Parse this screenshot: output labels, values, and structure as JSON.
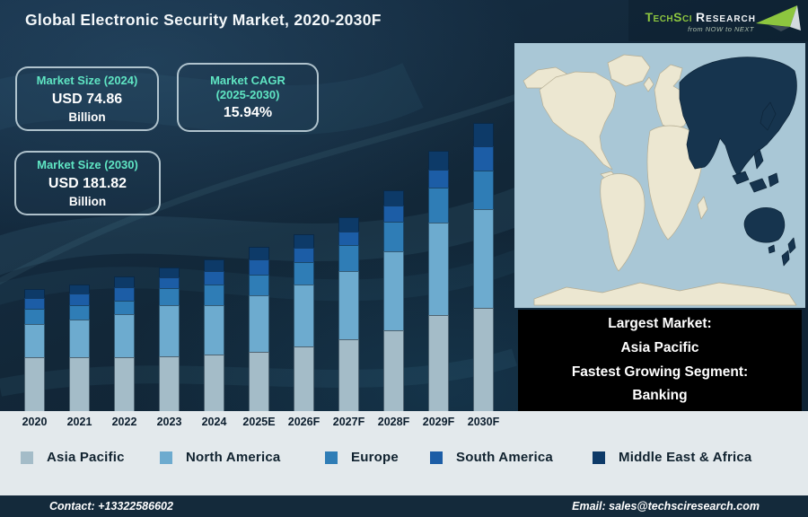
{
  "header": {
    "title": "Global Electronic Security Market, 2020-2030F",
    "logo": {
      "part1": "TechSci",
      "part2": "Research",
      "tagline": "from NOW to NEXT"
    }
  },
  "info_boxes": [
    {
      "label": "Market Size (2024)",
      "value": "USD 74.86",
      "unit": "Billion"
    },
    {
      "label": "Market CAGR",
      "label2": "(2025-2030)",
      "value": "15.94%"
    },
    {
      "label": "Market Size (2030)",
      "value": "USD 181.82",
      "unit": "Billion"
    }
  ],
  "chart_data": {
    "type": "bar",
    "stacked": true,
    "title": "Global Electronic Security Market, 2020-2030F",
    "categories": [
      "2020",
      "2021",
      "2022",
      "2023",
      "2024",
      "2025E",
      "2026F",
      "2027F",
      "2028F",
      "2029F",
      "2030F"
    ],
    "series": [
      {
        "name": "Asia Pacific",
        "color": "#a4bcc8",
        "values": [
          60,
          60,
          60,
          61,
          63,
          66,
          72,
          80,
          90,
          107,
          115
        ]
      },
      {
        "name": "North America",
        "color": "#6dabcf",
        "values": [
          37,
          42,
          48,
          57,
          55,
          63,
          69,
          76,
          88,
          103,
          110
        ]
      },
      {
        "name": "Europe",
        "color": "#2f7db6",
        "values": [
          17,
          16,
          15,
          19,
          23,
          23,
          25,
          29,
          33,
          39,
          43
        ]
      },
      {
        "name": "South America",
        "color": "#1c5da6",
        "values": [
          12,
          13,
          15,
          12,
          15,
          17,
          16,
          15,
          18,
          20,
          27
        ]
      },
      {
        "name": "Middle East & Africa",
        "color": "#0d3a68",
        "values": [
          10,
          10,
          12,
          11,
          13,
          14,
          15,
          16,
          17,
          21,
          26
        ]
      }
    ],
    "value_units": "relative bar height in pixels; the chart shows no value axis",
    "anchors": {
      "market_size_2024": "USD 74.86 Billion",
      "market_size_2030": "USD 181.82 Billion",
      "cagr_2025_2030": "15.94%"
    },
    "value_axis_visible": false,
    "grid": false,
    "legend_position": "bottom"
  },
  "highlight_box": {
    "lines": [
      "Largest Market:",
      "Asia Pacific",
      "Fastest Growing Segment:",
      "Banking"
    ]
  },
  "footer": {
    "contact": "Contact: +13322586602",
    "email": "Email: sales@techsciresearch.com"
  },
  "colors": {
    "background": "#122738",
    "accent_teal": "#5fe5c3",
    "band": "#e3e9ec",
    "footer_bar": "#142a3b",
    "highlight_box": "#000000",
    "map_ocean": "#a9c7d6",
    "map_land": "#ece7d1",
    "map_highlight_region": "#16344e",
    "title_text": "#ffffff",
    "legend_text": "#10222f"
  }
}
